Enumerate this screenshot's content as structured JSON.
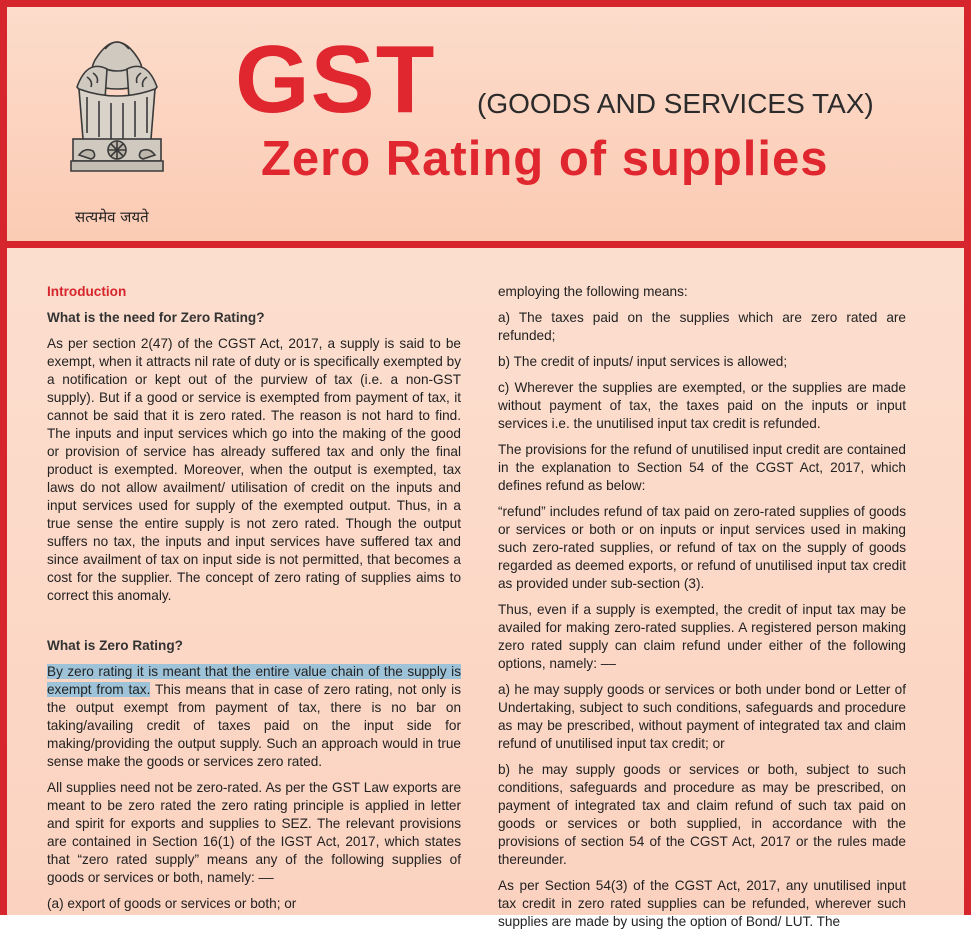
{
  "header": {
    "title": "GST",
    "subtitle": "(GOODS AND SERVICES TAX)",
    "heading": "Zero Rating of supplies",
    "motto": "सत्यमेव जयते",
    "emblem": "lion-capital-emblem"
  },
  "colors": {
    "accent": "#d6252c",
    "title": "#e0262e",
    "background": "#fbd2c0",
    "highlight": "#9ec3d8"
  },
  "left": {
    "section": "Introduction",
    "q1": "What is the need for Zero Rating?",
    "p1": "As per section 2(47) of the CGST Act, 2017, a supply is said to be exempt, when it attracts nil rate of duty or is specifically exempted by a notification or kept out of the purview of tax (i.e. a non-GST supply). But if a good or service is exempted from payment of tax, it cannot be said that it is zero rated. The reason is not hard to find. The inputs and input services which go into the making of the good or provision of service has already suffered tax and only the final product is exempted. Moreover, when the output is exempted, tax laws do not allow availment/ utilisation of credit on the inputs and input services used for supply of the exempted output. Thus, in a true sense the entire supply is not zero rated. Though the output suffers no tax, the inputs and input services have suffered tax and since availment of tax on input side is not permitted, that becomes a cost for the supplier. The concept of zero rating of supplies aims to correct this anomaly.",
    "q2": "What is Zero Rating?",
    "p2_highlight": "By zero rating it is meant that the entire value chain of the supply is exempt from tax.",
    "p2_rest": " This means that in case of zero rating, not only is the output exempt from payment of tax, there is no bar on taking/availing credit of taxes paid on the input side for making/providing the output supply. Such an approach would in true sense make the goods or services zero rated.",
    "p3": "All supplies need not be zero-rated. As per the GST Law exports are meant to be zero rated the zero rating principle is applied in letter and spirit for exports and supplies to SEZ. The relevant provisions are contained in Section 16(1) of the IGST Act, 2017, which states that “zero rated supply” means any of the following supplies of goods or services or both, namely: ––",
    "p4": "(a) export of goods or services or both; or"
  },
  "right": {
    "p1": "employing the following means:",
    "p2": "a) The taxes paid on the supplies which are zero rated are refunded;",
    "p3": "b) The credit of inputs/ input services is allowed;",
    "p4": "c) Wherever the supplies are exempted, or the supplies are made without payment of tax, the taxes paid on the inputs or input services i.e. the unutilised input tax credit is refunded.",
    "p5": "The provisions for the refund of unutilised input credit are contained in the explanation to Section 54 of the CGST Act, 2017, which defines refund as below:",
    "p6": "“refund” includes refund of tax paid on zero-rated supplies of goods or services or both or on inputs or input services used in making such zero-rated supplies, or refund of tax on the supply of goods regarded as deemed exports, or refund of unutilised input tax credit as provided under sub-section (3).",
    "p7": "Thus, even if a supply is exempted, the credit of input tax may be availed for making zero-rated supplies. A registered person making zero rated supply can claim refund under either of the following options, namely: ––",
    "p8": "a) he may supply goods or services or both under bond or Letter of Undertaking, subject to such conditions, safeguards and procedure as may be prescribed, without payment of integrated tax and claim refund of unutilised input tax credit; or",
    "p9": "b) he may supply goods or services or both, subject to such conditions, safeguards and procedure as may be prescribed, on payment of integrated tax and claim refund of such tax paid on goods or services or both supplied, in accordance with the provisions of section 54 of the CGST Act, 2017 or the rules made thereunder.",
    "p10": "As per Section 54(3) of the CGST Act, 2017, any unutilised input tax credit in zero rated supplies can be refunded, wherever such supplies are made by using the option of Bond/ LUT. The"
  }
}
